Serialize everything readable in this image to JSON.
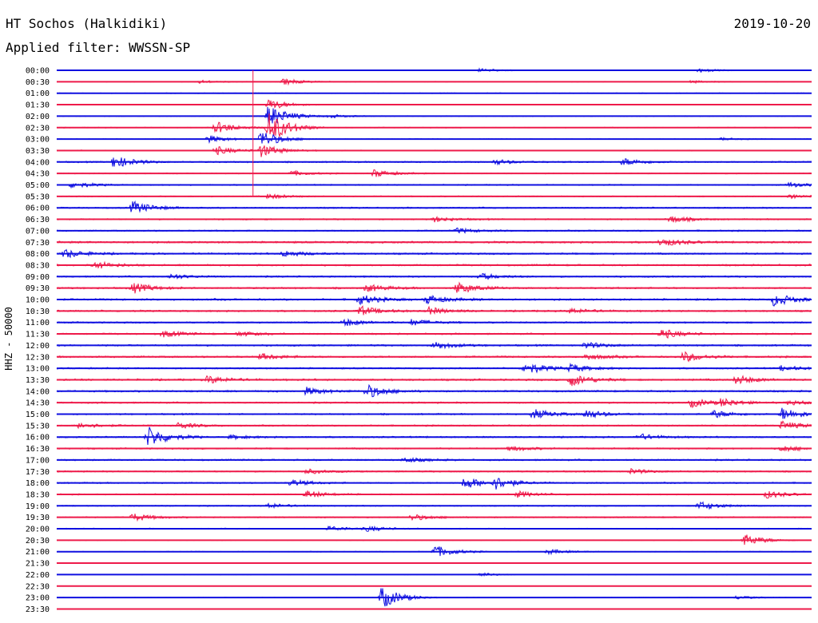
{
  "header": {
    "station": "HT Sochos (Halkidiki)",
    "date": "2019-10-20",
    "filter": "Applied filter: WWSSN-SP"
  },
  "colors": {
    "trace_a": "#1010e0",
    "trace_b": "#ee1a4a"
  },
  "chart_data": {
    "type": "line",
    "ylabel": "HHZ - 50000",
    "time_labels": [
      "00:00",
      "00:30",
      "01:00",
      "01:30",
      "02:00",
      "02:30",
      "03:00",
      "03:30",
      "04:00",
      "04:30",
      "05:00",
      "05:30",
      "06:00",
      "06:30",
      "07:00",
      "07:30",
      "08:00",
      "08:30",
      "09:00",
      "09:30",
      "10:00",
      "10:30",
      "11:00",
      "11:30",
      "12:00",
      "12:30",
      "13:00",
      "13:30",
      "14:00",
      "14:30",
      "15:00",
      "15:30",
      "16:00",
      "16:30",
      "17:00",
      "17:30",
      "18:00",
      "18:30",
      "19:00",
      "19:30",
      "20:00",
      "20:30",
      "21:00",
      "21:30",
      "22:00",
      "22:30",
      "23:00",
      "23:30"
    ],
    "traces": [
      {
        "level": 0.15,
        "events": [
          {
            "t": 0.56,
            "a": 0.3
          },
          {
            "t": 0.85,
            "a": 0.3
          }
        ]
      },
      {
        "level": 0.2,
        "events": [
          {
            "t": 0.19,
            "a": 0.25
          },
          {
            "t": 0.3,
            "a": 0.5
          },
          {
            "t": 0.84,
            "a": 0.2
          }
        ]
      },
      {
        "level": 0.25,
        "events": []
      },
      {
        "level": 0.2,
        "events": [
          {
            "t": 0.28,
            "a": 0.9
          }
        ]
      },
      {
        "level": 0.25,
        "events": [
          {
            "t": 0.28,
            "a": 1.8
          },
          {
            "t": 0.36,
            "a": 0.3
          }
        ]
      },
      {
        "level": 0.25,
        "events": [
          {
            "t": 0.21,
            "a": 1.0
          },
          {
            "t": 0.28,
            "a": 2.6
          }
        ]
      },
      {
        "level": 0.2,
        "events": [
          {
            "t": 0.2,
            "a": 0.6
          },
          {
            "t": 0.27,
            "a": 1.4
          },
          {
            "t": 0.88,
            "a": 0.2
          }
        ]
      },
      {
        "level": 0.3,
        "events": [
          {
            "t": 0.21,
            "a": 0.7
          },
          {
            "t": 0.27,
            "a": 1.0
          }
        ]
      },
      {
        "level": 0.45,
        "events": [
          {
            "t": 0.075,
            "a": 1.0
          },
          {
            "t": 0.58,
            "a": 0.4
          },
          {
            "t": 0.75,
            "a": 0.6
          }
        ]
      },
      {
        "level": 0.3,
        "events": [
          {
            "t": 0.31,
            "a": 0.4
          },
          {
            "t": 0.42,
            "a": 0.6
          }
        ]
      },
      {
        "level": 0.4,
        "events": [
          {
            "t": 0.02,
            "a": 0.5
          },
          {
            "t": 0.97,
            "a": 0.4
          }
        ]
      },
      {
        "level": 0.35,
        "events": [
          {
            "t": 0.28,
            "a": 0.4
          },
          {
            "t": 0.97,
            "a": 0.3
          }
        ]
      },
      {
        "level": 0.45,
        "events": [
          {
            "t": 0.1,
            "a": 1.0
          }
        ]
      },
      {
        "level": 0.45,
        "events": [
          {
            "t": 0.5,
            "a": 0.4
          },
          {
            "t": 0.81,
            "a": 0.6
          }
        ]
      },
      {
        "level": 0.45,
        "events": [
          {
            "t": 0.53,
            "a": 0.4
          }
        ]
      },
      {
        "level": 0.6,
        "events": [
          {
            "t": 0.8,
            "a": 0.7
          }
        ]
      },
      {
        "level": 0.55,
        "events": [
          {
            "t": 0.01,
            "a": 0.7
          },
          {
            "t": 0.3,
            "a": 0.5
          }
        ]
      },
      {
        "level": 0.55,
        "events": [
          {
            "t": 0.05,
            "a": 0.6
          }
        ]
      },
      {
        "level": 0.5,
        "events": [
          {
            "t": 0.15,
            "a": 0.4
          },
          {
            "t": 0.56,
            "a": 0.5
          }
        ]
      },
      {
        "level": 0.55,
        "events": [
          {
            "t": 0.1,
            "a": 0.8
          },
          {
            "t": 0.41,
            "a": 0.6
          },
          {
            "t": 0.53,
            "a": 0.9
          }
        ]
      },
      {
        "level": 0.6,
        "events": [
          {
            "t": 0.4,
            "a": 0.8
          },
          {
            "t": 0.49,
            "a": 0.7
          },
          {
            "t": 0.95,
            "a": 1.0
          }
        ]
      },
      {
        "level": 0.55,
        "events": [
          {
            "t": 0.4,
            "a": 0.8
          },
          {
            "t": 0.49,
            "a": 0.6
          },
          {
            "t": 0.68,
            "a": 0.4
          }
        ]
      },
      {
        "level": 0.5,
        "events": [
          {
            "t": 0.38,
            "a": 0.6
          },
          {
            "t": 0.47,
            "a": 0.5
          }
        ]
      },
      {
        "level": 0.5,
        "events": [
          {
            "t": 0.14,
            "a": 0.5
          },
          {
            "t": 0.24,
            "a": 0.4
          },
          {
            "t": 0.8,
            "a": 0.8
          }
        ]
      },
      {
        "level": 0.55,
        "events": [
          {
            "t": 0.5,
            "a": 0.6
          },
          {
            "t": 0.7,
            "a": 0.5
          }
        ]
      },
      {
        "level": 0.55,
        "events": [
          {
            "t": 0.27,
            "a": 0.5
          },
          {
            "t": 0.7,
            "a": 0.5
          },
          {
            "t": 0.83,
            "a": 0.8
          }
        ]
      },
      {
        "level": 0.5,
        "events": [
          {
            "t": 0.62,
            "a": 1.0
          },
          {
            "t": 0.68,
            "a": 0.6
          },
          {
            "t": 0.96,
            "a": 0.4
          }
        ]
      },
      {
        "level": 0.6,
        "events": [
          {
            "t": 0.2,
            "a": 0.6
          },
          {
            "t": 0.68,
            "a": 1.0
          },
          {
            "t": 0.9,
            "a": 0.7
          }
        ]
      },
      {
        "level": 0.55,
        "events": [
          {
            "t": 0.33,
            "a": 0.6
          },
          {
            "t": 0.41,
            "a": 1.1
          }
        ]
      },
      {
        "level": 0.5,
        "events": [
          {
            "t": 0.84,
            "a": 0.7
          },
          {
            "t": 0.88,
            "a": 0.6
          },
          {
            "t": 0.97,
            "a": 0.4
          }
        ]
      },
      {
        "level": 0.5,
        "events": [
          {
            "t": 0.63,
            "a": 0.8
          },
          {
            "t": 0.7,
            "a": 0.7
          },
          {
            "t": 0.87,
            "a": 0.6
          },
          {
            "t": 0.96,
            "a": 1.0
          }
        ]
      },
      {
        "level": 0.45,
        "events": [
          {
            "t": 0.03,
            "a": 0.5
          },
          {
            "t": 0.16,
            "a": 0.5
          },
          {
            "t": 0.96,
            "a": 0.7
          }
        ]
      },
      {
        "level": 0.5,
        "events": [
          {
            "t": 0.12,
            "a": 1.7
          },
          {
            "t": 0.23,
            "a": 0.3
          },
          {
            "t": 0.77,
            "a": 0.5
          }
        ]
      },
      {
        "level": 0.5,
        "events": [
          {
            "t": 0.6,
            "a": 0.4
          },
          {
            "t": 0.96,
            "a": 0.5
          }
        ]
      },
      {
        "level": 0.5,
        "events": [
          {
            "t": 0.46,
            "a": 0.4
          }
        ]
      },
      {
        "level": 0.45,
        "events": [
          {
            "t": 0.33,
            "a": 0.4
          },
          {
            "t": 0.76,
            "a": 0.4
          }
        ]
      },
      {
        "level": 0.45,
        "events": [
          {
            "t": 0.31,
            "a": 0.5
          },
          {
            "t": 0.54,
            "a": 1.0
          },
          {
            "t": 0.58,
            "a": 0.9
          }
        ]
      },
      {
        "level": 0.4,
        "events": [
          {
            "t": 0.33,
            "a": 0.6
          },
          {
            "t": 0.61,
            "a": 0.5
          },
          {
            "t": 0.94,
            "a": 0.6
          }
        ]
      },
      {
        "level": 0.35,
        "events": [
          {
            "t": 0.28,
            "a": 0.4
          },
          {
            "t": 0.85,
            "a": 0.7
          }
        ]
      },
      {
        "level": 0.4,
        "events": [
          {
            "t": 0.1,
            "a": 0.6
          },
          {
            "t": 0.47,
            "a": 0.5
          }
        ]
      },
      {
        "level": 0.35,
        "events": [
          {
            "t": 0.36,
            "a": 0.4
          },
          {
            "t": 0.41,
            "a": 0.4
          }
        ]
      },
      {
        "level": 0.2,
        "events": [
          {
            "t": 0.91,
            "a": 1.0
          }
        ]
      },
      {
        "level": 0.25,
        "events": [
          {
            "t": 0.5,
            "a": 1.0
          },
          {
            "t": 0.65,
            "a": 0.4
          }
        ]
      },
      {
        "level": 0.15,
        "events": []
      },
      {
        "level": 0.12,
        "events": [
          {
            "t": 0.56,
            "a": 0.3
          }
        ]
      },
      {
        "level": 0.12,
        "events": []
      },
      {
        "level": 0.15,
        "events": [
          {
            "t": 0.43,
            "a": 1.8
          },
          {
            "t": 0.9,
            "a": 0.3
          }
        ]
      },
      {
        "level": 0.1,
        "events": []
      }
    ],
    "spike": {
      "t": 0.26,
      "from": "00:00",
      "to": "05:30"
    }
  }
}
